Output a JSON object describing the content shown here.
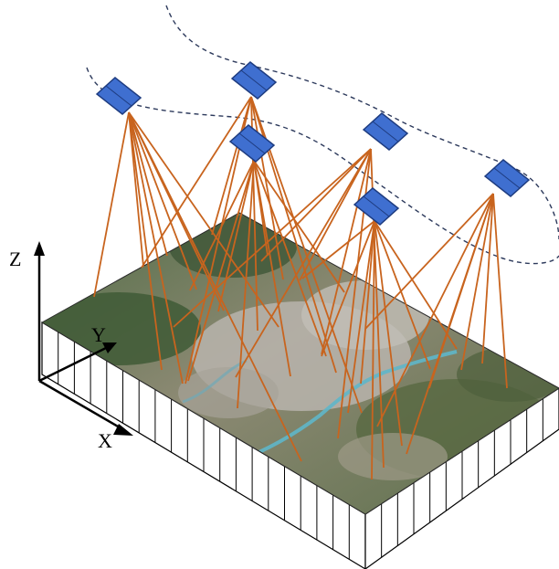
{
  "axes": {
    "x_label": "X",
    "y_label": "Y",
    "z_label": "Z"
  },
  "scene": {
    "satellite_count": 6,
    "ground_texture": "satellite-imagery-of-urban-area-with-river",
    "colors": {
      "ray": "#c8641e",
      "satellite_fill": "#3f6fd0",
      "satellite_stroke": "#1e3c80",
      "orbit_path": "#2d3a5c",
      "terrain_base": "#7c7a5c",
      "terrain_vegetation": "#3f5a36",
      "urban": "#b9b4ad",
      "river": "#5fb6c9"
    }
  }
}
